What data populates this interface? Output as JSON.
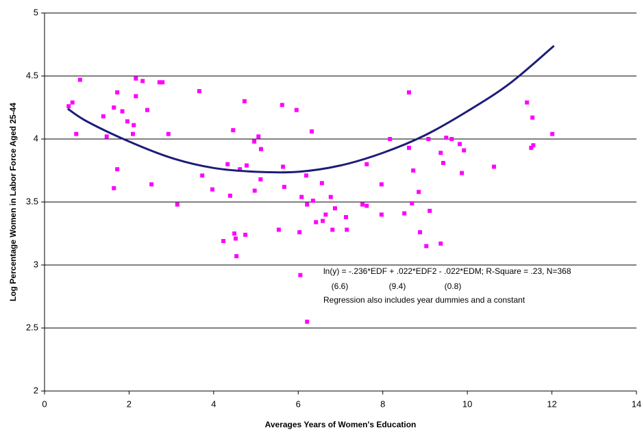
{
  "chart_data": {
    "type": "scatter",
    "x_label": "Averages Years of Women's Education",
    "y_label": "Log Percentage Women in Labor Force Aged 25-44",
    "xlim": [
      0,
      14
    ],
    "xticks": [
      0,
      2,
      4,
      6,
      8,
      10,
      12,
      14
    ],
    "ylim": [
      2,
      5
    ],
    "yticks": [
      2,
      2.5,
      3,
      3.5,
      4,
      4.5,
      5
    ],
    "grid": true,
    "annotations": [
      "ln(y) = -.236*EDF + .022*EDF2 - .022*EDM; R-Square = .23, N=368",
      "(6.6)",
      "(9.4)",
      "(0.8)",
      "Regression also includes year dummies and a constant"
    ],
    "series": [
      {
        "type": "scatter",
        "color": "#ff00ff",
        "x": [
          0.57,
          0.66,
          0.75,
          0.84,
          1.39,
          1.47,
          1.64,
          1.64,
          1.72,
          1.72,
          1.84,
          1.96,
          2.09,
          2.11,
          2.16,
          2.16,
          2.32,
          2.43,
          2.53,
          2.72,
          2.79,
          2.93,
          3.14,
          3.66,
          3.73,
          3.97,
          4.23,
          4.33,
          4.39,
          4.46,
          4.49,
          4.52,
          4.54,
          4.62,
          4.73,
          4.75,
          4.78,
          4.96,
          4.97,
          5.06,
          5.11,
          5.12,
          5.54,
          5.62,
          5.64,
          5.67,
          5.96,
          6.03,
          6.05,
          6.08,
          6.19,
          6.21,
          6.21,
          6.32,
          6.35,
          6.42,
          6.56,
          6.58,
          6.65,
          6.77,
          6.81,
          6.87,
          7.13,
          7.15,
          7.52,
          7.62,
          7.62,
          7.97,
          7.97,
          8.17,
          8.51,
          8.62,
          8.62,
          8.69,
          8.72,
          8.85,
          8.88,
          9.03,
          9.08,
          9.11,
          9.37,
          9.37,
          9.43,
          9.5,
          9.63,
          9.82,
          9.87,
          9.92,
          10.63,
          11.41,
          11.51,
          11.54,
          11.56,
          12.01
        ],
        "values": [
          4.26,
          4.29,
          4.04,
          4.47,
          4.18,
          4.02,
          4.25,
          3.61,
          4.37,
          3.76,
          4.22,
          4.14,
          4.04,
          4.11,
          4.48,
          4.34,
          4.46,
          4.23,
          3.64,
          4.45,
          4.45,
          4.04,
          3.48,
          4.38,
          3.71,
          3.6,
          3.19,
          3.8,
          3.55,
          4.07,
          3.25,
          3.21,
          3.07,
          3.76,
          4.3,
          3.24,
          3.79,
          3.98,
          3.59,
          4.02,
          3.68,
          3.92,
          3.28,
          4.27,
          3.78,
          3.62,
          4.23,
          3.26,
          2.92,
          3.54,
          3.71,
          3.48,
          2.55,
          4.06,
          3.51,
          3.34,
          3.65,
          3.35,
          3.4,
          3.54,
          3.28,
          3.45,
          3.38,
          3.28,
          3.48,
          3.47,
          3.8,
          3.64,
          3.4,
          4.0,
          3.41,
          4.37,
          3.93,
          3.49,
          3.75,
          3.58,
          3.26,
          3.15,
          4.0,
          3.43,
          3.89,
          3.17,
          3.81,
          4.01,
          4.0,
          3.96,
          3.73,
          3.91,
          3.78,
          4.29,
          3.93,
          4.17,
          3.95,
          4.04
        ]
      },
      {
        "type": "line",
        "color": "#1c1c78",
        "x": [
          0.55,
          1,
          2,
          3,
          4,
          5,
          6,
          7,
          8,
          9,
          10,
          11,
          12.05
        ],
        "values": [
          4.24,
          4.14,
          3.98,
          3.85,
          3.77,
          3.74,
          3.74,
          3.79,
          3.89,
          4.03,
          4.22,
          4.44,
          4.74
        ]
      }
    ]
  }
}
